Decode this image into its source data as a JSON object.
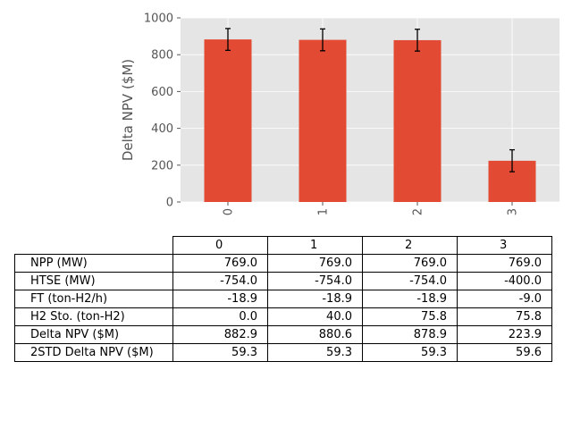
{
  "chart_data": {
    "type": "bar",
    "categories": [
      "0",
      "1",
      "2",
      "3"
    ],
    "values": [
      882.9,
      880.6,
      878.9,
      223.9
    ],
    "errors": [
      59.3,
      59.3,
      59.3,
      59.6
    ],
    "xlabel": "",
    "ylabel": "Delta NPV ($M)",
    "ylim": [
      0,
      1000
    ],
    "yticks": [
      0,
      200,
      400,
      600,
      800,
      1000
    ],
    "grid": true,
    "bar_color": "#E24A33",
    "background_color": "#E5E5E5"
  },
  "table": {
    "columns": [
      "0",
      "1",
      "2",
      "3"
    ],
    "rows": [
      {
        "label": "NPP (MW)",
        "values": [
          "769.0",
          "769.0",
          "769.0",
          "769.0"
        ]
      },
      {
        "label": "HTSE (MW)",
        "values": [
          "-754.0",
          "-754.0",
          "-754.0",
          "-400.0"
        ]
      },
      {
        "label": "FT (ton-H2/h)",
        "values": [
          "-18.9",
          "-18.9",
          "-18.9",
          "-9.0"
        ]
      },
      {
        "label": "H2 Sto. (ton-H2)",
        "values": [
          "0.0",
          "40.0",
          "75.8",
          "75.8"
        ]
      },
      {
        "label": "Delta NPV ($M)",
        "values": [
          "882.9",
          "880.6",
          "878.9",
          "223.9"
        ]
      },
      {
        "label": "2STD Delta NPV ($M)",
        "values": [
          "59.3",
          "59.3",
          "59.3",
          "59.6"
        ]
      }
    ]
  }
}
